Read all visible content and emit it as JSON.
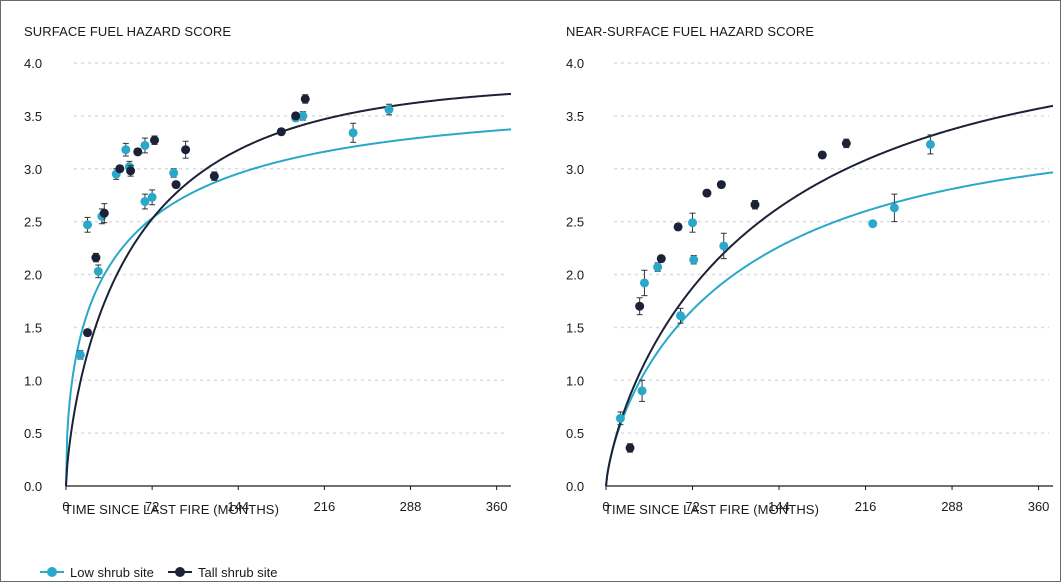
{
  "chart_data": [
    {
      "type": "scatter",
      "title": "SURFACE FUEL HAZARD SCORE",
      "xlabel": "TIME SINCE LAST FIRE (MONTHS)",
      "ylabel": "",
      "xlim": [
        0,
        372
      ],
      "ylim": [
        0,
        4.0
      ],
      "xticks": [
        "0",
        "72",
        "144",
        "216",
        "288",
        "360"
      ],
      "yticks": [
        "0.0",
        "0.5",
        "1.0",
        "1.5",
        "2.0",
        "2.5",
        "3.0",
        "3.5",
        "4.0"
      ],
      "grid": "dotted horizontal",
      "series": [
        {
          "name": "Low shrub site",
          "color": "#2aa8c9",
          "points": [
            {
              "x": 12,
              "y": 1.24,
              "err": 0.04
            },
            {
              "x": 18,
              "y": 2.47,
              "err": 0.07
            },
            {
              "x": 27,
              "y": 2.03,
              "err": 0.06
            },
            {
              "x": 30,
              "y": 2.55,
              "err": 0.07
            },
            {
              "x": 42,
              "y": 2.95,
              "err": 0.05
            },
            {
              "x": 50,
              "y": 3.18,
              "err": 0.06
            },
            {
              "x": 53,
              "y": 3.02,
              "err": 0.05
            },
            {
              "x": 66,
              "y": 3.22,
              "err": 0.07
            },
            {
              "x": 66,
              "y": 2.69,
              "err": 0.07
            },
            {
              "x": 72,
              "y": 2.73,
              "err": 0.07
            },
            {
              "x": 90,
              "y": 2.96,
              "err": 0.04
            },
            {
              "x": 192,
              "y": 3.48,
              "err": 0.03
            },
            {
              "x": 198,
              "y": 3.5,
              "err": 0.04
            },
            {
              "x": 240,
              "y": 3.34,
              "err": 0.09
            },
            {
              "x": 270,
              "y": 3.56,
              "err": 0.05
            }
          ],
          "fit": {
            "form": "saturating",
            "a": 3.6,
            "k": 0.0205,
            "b": 0.5
          }
        },
        {
          "name": "Tall shrub site",
          "color": "#1b2237",
          "points": [
            {
              "x": 18,
              "y": 1.45,
              "err": 0.03
            },
            {
              "x": 25,
              "y": 2.16,
              "err": 0.04
            },
            {
              "x": 32,
              "y": 2.58,
              "err": 0.09
            },
            {
              "x": 45,
              "y": 3.0,
              "err": 0.03
            },
            {
              "x": 54,
              "y": 2.98,
              "err": 0.05
            },
            {
              "x": 60,
              "y": 3.16,
              "err": 0.03
            },
            {
              "x": 74,
              "y": 3.27,
              "err": 0.04
            },
            {
              "x": 92,
              "y": 2.85,
              "err": 0.03
            },
            {
              "x": 100,
              "y": 3.18,
              "err": 0.08
            },
            {
              "x": 124,
              "y": 2.93,
              "err": 0.04
            },
            {
              "x": 180,
              "y": 3.35,
              "err": 0.03
            },
            {
              "x": 192,
              "y": 3.5,
              "err": 0.03
            },
            {
              "x": 200,
              "y": 3.66,
              "err": 0.04
            }
          ],
          "fit": {
            "form": "saturating",
            "a": 3.82,
            "k": 0.0155,
            "b": 0.72
          }
        }
      ]
    },
    {
      "type": "scatter",
      "title": "NEAR-SURFACE FUEL HAZARD SCORE",
      "xlabel": "TIME SINCE LAST FIRE (MONTHS)",
      "ylabel": "",
      "xlim": [
        0,
        372
      ],
      "ylim": [
        0,
        4.0
      ],
      "xticks": [
        "0",
        "72",
        "144",
        "216",
        "288",
        "360"
      ],
      "yticks": [
        "0.0",
        "0.5",
        "1.0",
        "1.5",
        "2.0",
        "2.5",
        "3.0",
        "3.5",
        "4.0"
      ],
      "grid": "dotted horizontal",
      "series": [
        {
          "name": "Low shrub site",
          "color": "#2aa8c9",
          "points": [
            {
              "x": 12,
              "y": 0.64,
              "err": 0.06
            },
            {
              "x": 30,
              "y": 0.9,
              "err": 0.1
            },
            {
              "x": 32,
              "y": 1.92,
              "err": 0.12
            },
            {
              "x": 43,
              "y": 2.07,
              "err": 0.04
            },
            {
              "x": 62,
              "y": 1.61,
              "err": 0.07
            },
            {
              "x": 72,
              "y": 2.49,
              "err": 0.09
            },
            {
              "x": 73,
              "y": 2.14,
              "err": 0.04
            },
            {
              "x": 98,
              "y": 2.27,
              "err": 0.12
            },
            {
              "x": 222,
              "y": 2.48,
              "err": 0.02
            },
            {
              "x": 240,
              "y": 2.63,
              "err": 0.13
            },
            {
              "x": 270,
              "y": 3.23,
              "err": 0.09
            }
          ],
          "fit": {
            "form": "saturating",
            "a": 3.3,
            "k": 0.0085,
            "b": 0.72
          }
        },
        {
          "name": "Tall shrub site",
          "color": "#1b2237",
          "points": [
            {
              "x": 20,
              "y": 0.36,
              "err": 0.04
            },
            {
              "x": 28,
              "y": 1.7,
              "err": 0.08
            },
            {
              "x": 46,
              "y": 2.15,
              "err": 0.03
            },
            {
              "x": 60,
              "y": 2.45,
              "err": 0.03
            },
            {
              "x": 84,
              "y": 2.77,
              "err": 0.03
            },
            {
              "x": 96,
              "y": 2.85,
              "err": 0.03
            },
            {
              "x": 124,
              "y": 2.66,
              "err": 0.04
            },
            {
              "x": 180,
              "y": 3.13,
              "err": 0.03
            },
            {
              "x": 200,
              "y": 3.24,
              "err": 0.04
            }
          ],
          "fit": {
            "form": "saturating",
            "a": 4.1,
            "k": 0.0072,
            "b": 0.75
          }
        }
      ]
    }
  ],
  "legend": {
    "items": [
      {
        "label": "Low shrub site",
        "color": "#2aa8c9"
      },
      {
        "label": "Tall shrub site",
        "color": "#1b2237"
      }
    ],
    "placement": "bottom-left"
  }
}
